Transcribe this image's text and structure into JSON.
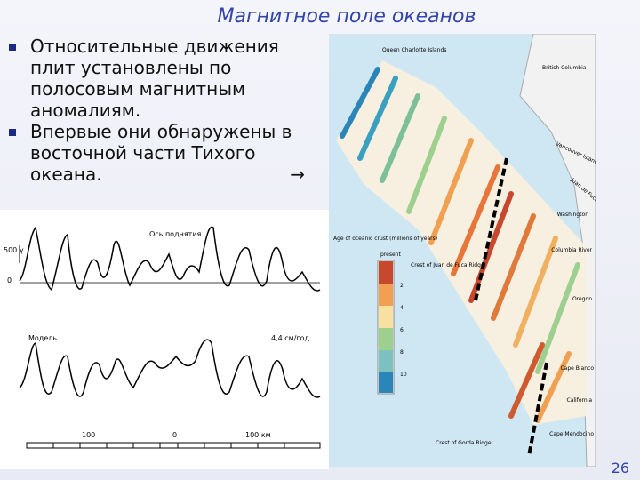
{
  "title": "Магнитное поле океанов",
  "bullets": [
    "Относительные движения плит установлены по полосовым магнитным аномалиям.",
    "Впервые они обнаружены в восточной части Тихого океана."
  ],
  "arrow": "→",
  "profile": {
    "scale_label": "500 γ",
    "zero": "0",
    "axis_label": "Ось поднятия",
    "model": "Модель",
    "rate": "4,4 см/год",
    "distance_left": "100",
    "distance_center": "0",
    "distance_right": "100 км"
  },
  "map": {
    "places": [
      "Queen Charlotte Islands",
      "British Columbia",
      "Vancouver Island",
      "Juan de Fuca Strait",
      "Washington",
      "Columbia River",
      "Oregon",
      "Cape Blanco",
      "California",
      "Cape Mendocino"
    ],
    "legend_title": "Age of oceanic crust (millions of years)",
    "legend_present": "present",
    "legend_ticks": [
      "2",
      "4",
      "6",
      "8",
      "10"
    ],
    "ridge_north": "Crest of Juan de Fuca Ridge",
    "ridge_south": "Crest of Gorda Ridge"
  },
  "page_number": "26"
}
